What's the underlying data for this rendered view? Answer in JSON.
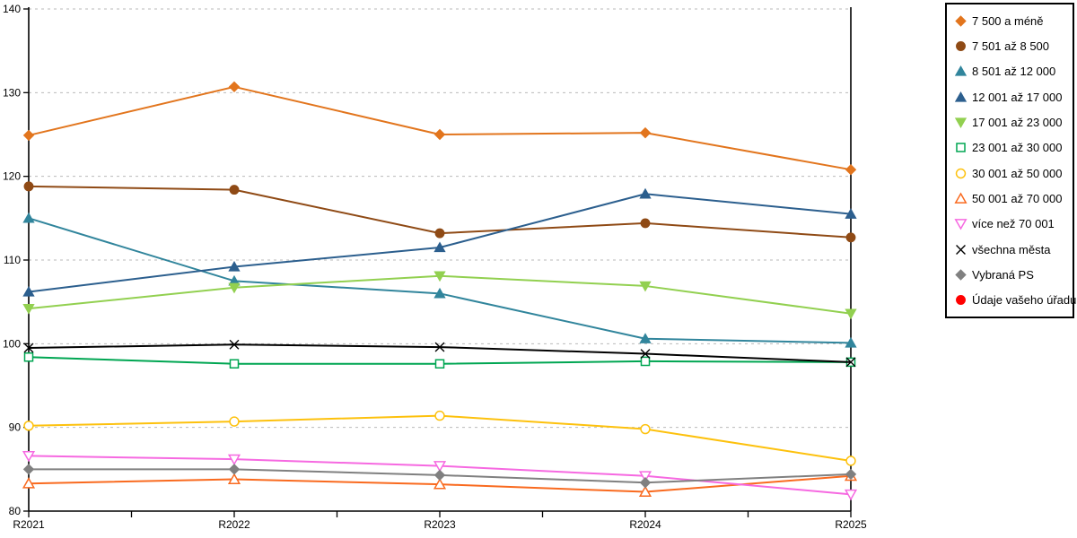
{
  "chart_data": {
    "type": "line",
    "title": "",
    "xlabel": "",
    "ylabel": "",
    "x": [
      "R2021",
      "R2022",
      "R2023",
      "R2024",
      "R2025"
    ],
    "ylim": [
      80,
      140
    ],
    "ytick_step": 10,
    "grid": "horizontal-dashed",
    "gridline_color": "#b9b9b9",
    "axis_color": "#000000",
    "legend_position": "right",
    "series": [
      {
        "name": "7 500 a méně",
        "color": "#E2751D",
        "marker": "diamond",
        "style": "filled",
        "values": [
          124.9,
          130.7,
          125.0,
          125.2,
          120.8
        ]
      },
      {
        "name": "7 501 až 8 500",
        "color": "#8F4A15",
        "marker": "circle",
        "style": "filled",
        "values": [
          118.8,
          118.4,
          113.2,
          114.4,
          112.7
        ]
      },
      {
        "name": "8 501 až 12 000",
        "color": "#31859C",
        "marker": "triangle-up",
        "style": "filled",
        "values": [
          115.0,
          107.5,
          106.0,
          100.6,
          100.1
        ]
      },
      {
        "name": "12 001 až 17 000",
        "color": "#2C5F8E",
        "marker": "triangle-up",
        "style": "filled",
        "values": [
          106.2,
          109.2,
          111.5,
          117.9,
          115.5
        ]
      },
      {
        "name": "17 001 až 23 000",
        "color": "#92D050",
        "marker": "triangle-down",
        "style": "filled",
        "values": [
          104.2,
          106.7,
          108.1,
          106.9,
          103.6
        ]
      },
      {
        "name": "23 001 až 30 000",
        "color": "#00A652",
        "marker": "square",
        "style": "open",
        "values": [
          98.4,
          97.6,
          97.6,
          97.9,
          97.8
        ]
      },
      {
        "name": "30 001 až 50 000",
        "color": "#FDC10D",
        "marker": "circle",
        "style": "open",
        "values": [
          90.2,
          90.7,
          91.4,
          89.8,
          86.0
        ]
      },
      {
        "name": "50 001 až 70 000",
        "color": "#F96A1F",
        "marker": "triangle-up",
        "style": "open",
        "values": [
          83.3,
          83.8,
          83.2,
          82.3,
          84.2
        ]
      },
      {
        "name": "více než 70 001",
        "color": "#F669E1",
        "marker": "triangle-down",
        "style": "open",
        "values": [
          86.6,
          86.2,
          85.4,
          84.2,
          82.0
        ]
      },
      {
        "name": "všechna města",
        "color": "#000000",
        "marker": "x",
        "style": "open",
        "values": [
          99.5,
          99.9,
          99.6,
          98.8,
          97.8
        ]
      },
      {
        "name": "Vybraná PS",
        "color": "#808080",
        "marker": "diamond",
        "style": "filled",
        "values": [
          85.0,
          85.0,
          84.3,
          83.4,
          84.4
        ]
      },
      {
        "name": "Údaje vašeho úřadu",
        "color": "#FF0000",
        "marker": "circle",
        "style": "filled",
        "values": [
          null,
          null,
          null,
          null,
          null
        ]
      }
    ]
  }
}
